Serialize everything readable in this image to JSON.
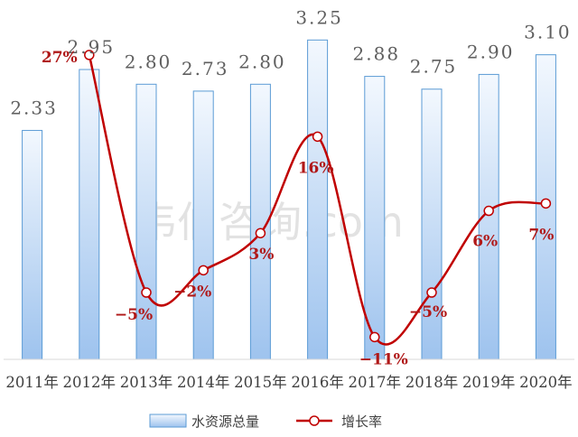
{
  "watermark": "韦伯咨询.com",
  "chart_data": {
    "type": "bar",
    "categories": [
      "2011年",
      "2012年",
      "2013年",
      "2014年",
      "2015年",
      "2016年",
      "2017年",
      "2018年",
      "2019年",
      "2020年"
    ],
    "series": [
      {
        "name": "水资源总量",
        "type": "bar",
        "values": [
          2.33,
          2.95,
          2.8,
          2.73,
          2.8,
          3.25,
          2.88,
          2.75,
          2.9,
          3.1
        ],
        "labels": [
          "2.33",
          "2.95",
          "2.80",
          "2.73",
          "2.80",
          "3.25",
          "2.88",
          "2.75",
          "2.90",
          "3.10"
        ],
        "color": "#9dc3e6"
      },
      {
        "name": "增长率",
        "type": "line",
        "values": [
          null,
          27,
          -5,
          -2,
          3,
          16,
          -11,
          -5,
          6,
          7
        ],
        "labels": [
          "",
          "27%",
          "-5%",
          "-2%",
          "3%",
          "16%",
          "-11%",
          "-5%",
          "6%",
          "7%"
        ],
        "color": "#c00000"
      }
    ],
    "ylim": [
      0,
      3.4
    ],
    "y2lim": [
      -14,
      31
    ],
    "legend": "bottom",
    "grid": false
  }
}
